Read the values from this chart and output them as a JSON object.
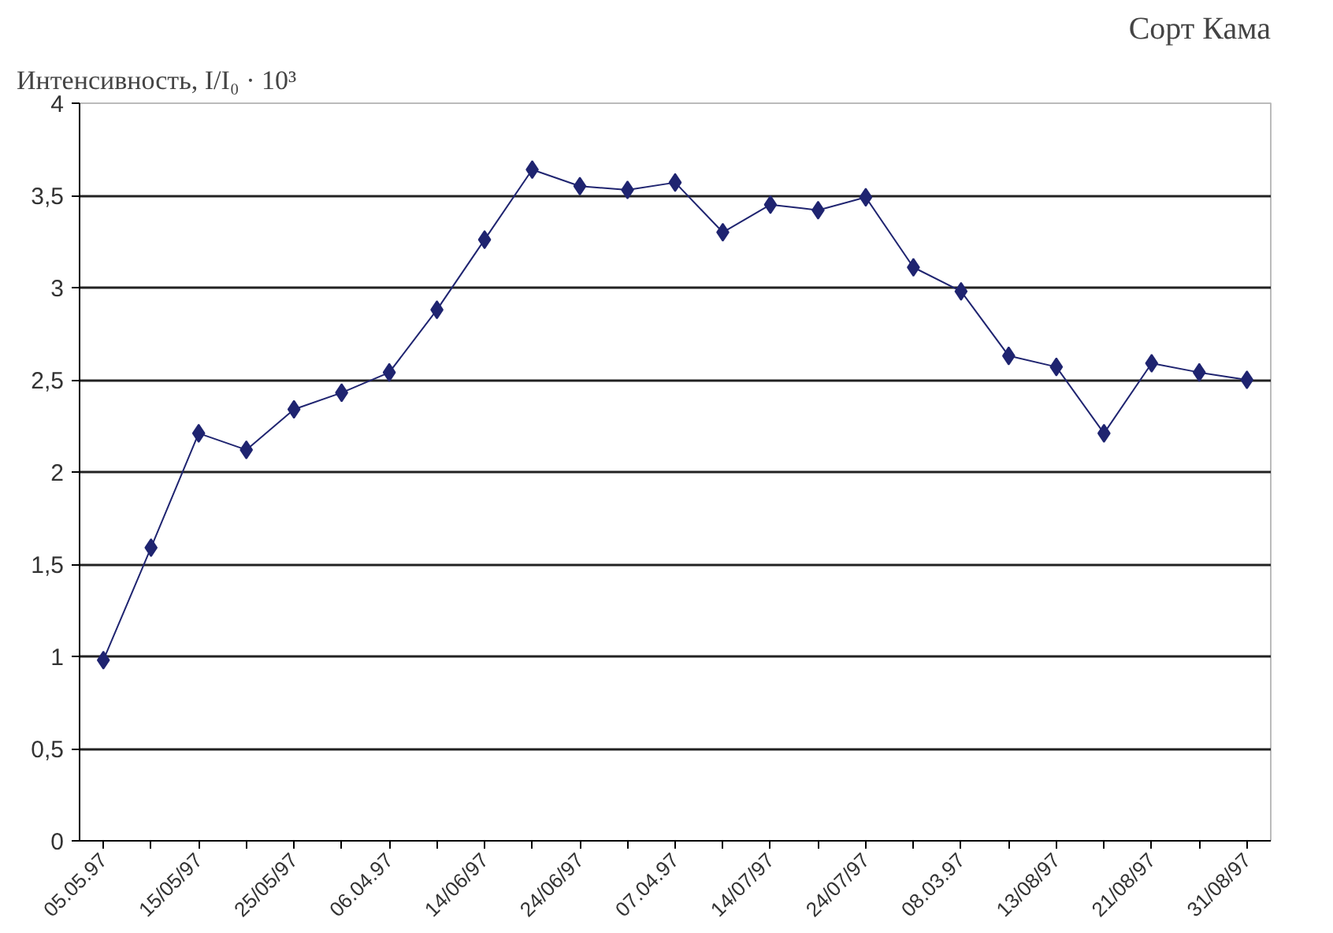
{
  "chart_data": {
    "type": "line",
    "title": "Сорт Кама",
    "ylabel": "Интенсивность, I/I₀ · 10³",
    "categories": [
      "05.05.97",
      null,
      "15/05/97",
      null,
      "25/05/97",
      null,
      "06.04.97",
      null,
      "14/06/97",
      null,
      "24/06/97",
      null,
      "07.04.97",
      null,
      "14/07/97",
      null,
      "24/07/97",
      null,
      "08.03.97",
      null,
      "13/08/97",
      null,
      "21/08/97",
      null,
      "31/08/97"
    ],
    "series": [
      {
        "color": "#1f2470",
        "values": [
          0.98,
          1.59,
          2.21,
          2.12,
          2.34,
          2.43,
          2.54,
          2.88,
          3.26,
          3.64,
          3.55,
          3.53,
          3.57,
          3.3,
          3.45,
          3.42,
          3.49,
          3.11,
          2.98,
          2.63,
          2.57,
          2.21,
          2.59,
          2.54,
          2.5
        ]
      }
    ],
    "ylim": [
      0,
      4
    ],
    "yticks": [
      0,
      {
        "value": 0.5,
        "label": "0,5"
      },
      1,
      {
        "value": 1.5,
        "label": "1,5"
      },
      2,
      {
        "value": 2.5,
        "label": "2,5"
      },
      3,
      {
        "value": 3.5,
        "label": "3,5"
      },
      4
    ],
    "grid": "y",
    "marker": "diamond",
    "line_style": "solid"
  }
}
